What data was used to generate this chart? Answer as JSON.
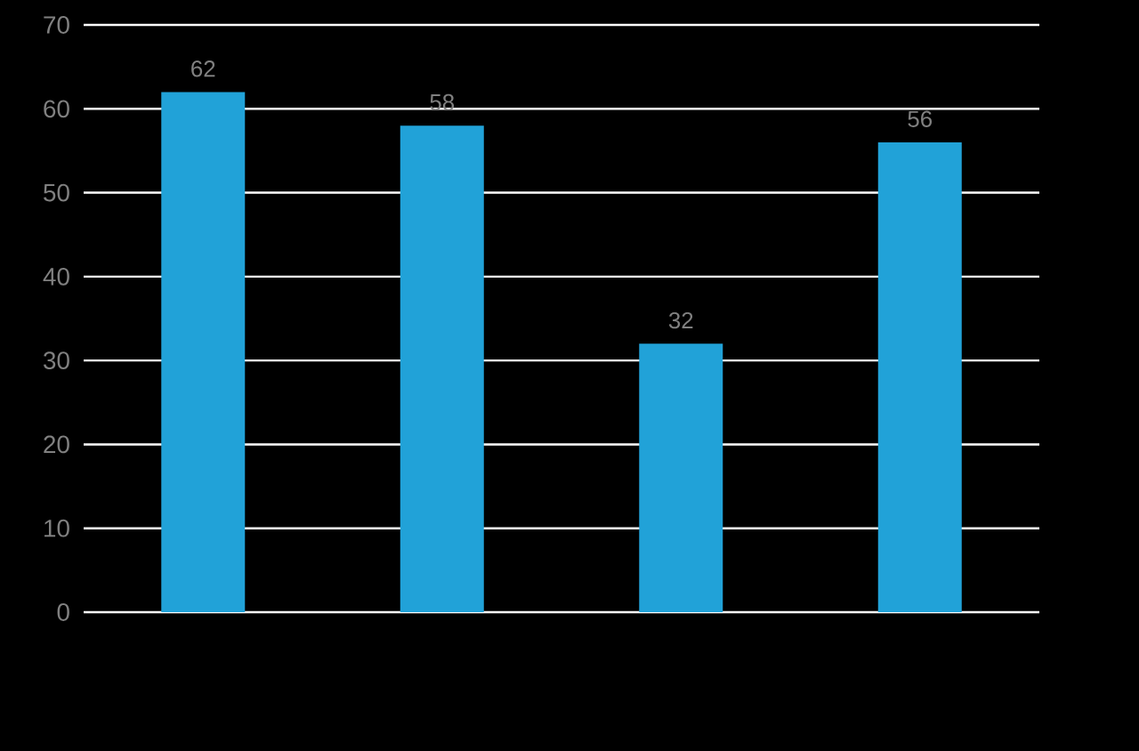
{
  "chart_data": {
    "type": "bar",
    "categories": [
      null,
      null,
      null,
      null
    ],
    "values": [
      62,
      58,
      32,
      56
    ],
    "color": "#21a2d8",
    "ylim": [
      0,
      70
    ],
    "yticks": [
      0,
      10,
      20,
      30,
      40,
      50,
      60,
      70
    ],
    "grid": "y",
    "data_labels": true
  }
}
